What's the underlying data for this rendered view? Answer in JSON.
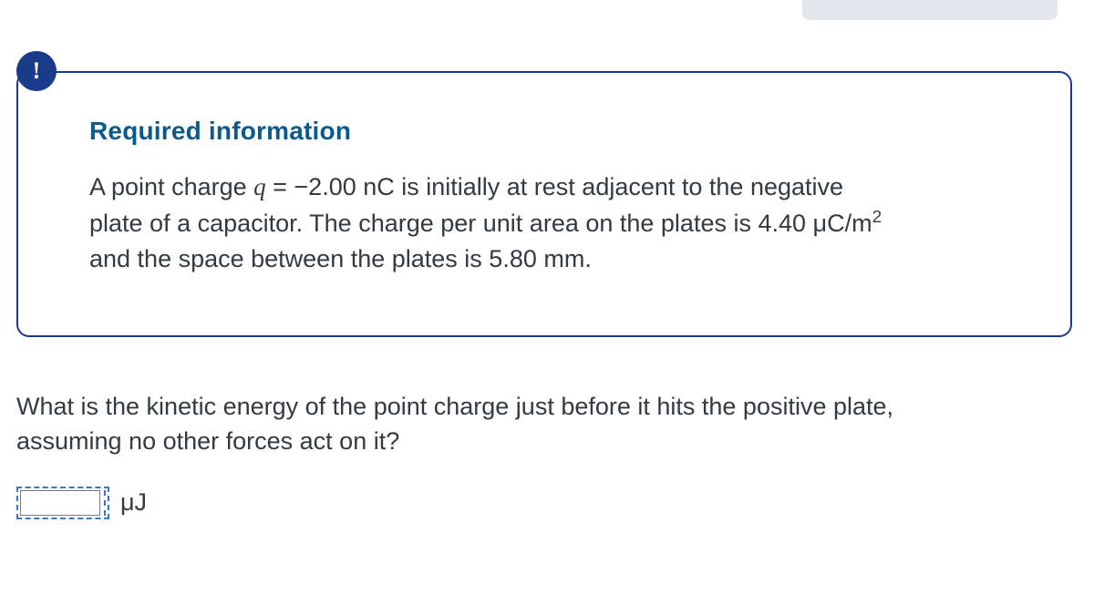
{
  "colors": {
    "box_border": "#1a3a8a",
    "icon_bg": "#1a3a8a",
    "heading": "#0a5a8a",
    "body_text": "#343a40",
    "dash_border": "#3a77c2",
    "top_shadow": "#e3e6ea"
  },
  "icon": {
    "glyph": "!"
  },
  "info": {
    "heading": "Required information",
    "line1_a": "A point charge ",
    "line1_var": "q",
    "line1_b": " = −2.00 nC is initially at rest adjacent to the negative",
    "line2_a": "plate of a capacitor. The charge per unit area on the plates is 4.40 μC/m",
    "line2_sup": "2",
    "line3": "and the space between the plates is 5.80 mm."
  },
  "question": {
    "text_a": "What is the kinetic energy of the point charge just before it hits the positive plate,",
    "text_b": "assuming no other forces act on it?"
  },
  "answer": {
    "value": "",
    "unit": "μJ"
  }
}
